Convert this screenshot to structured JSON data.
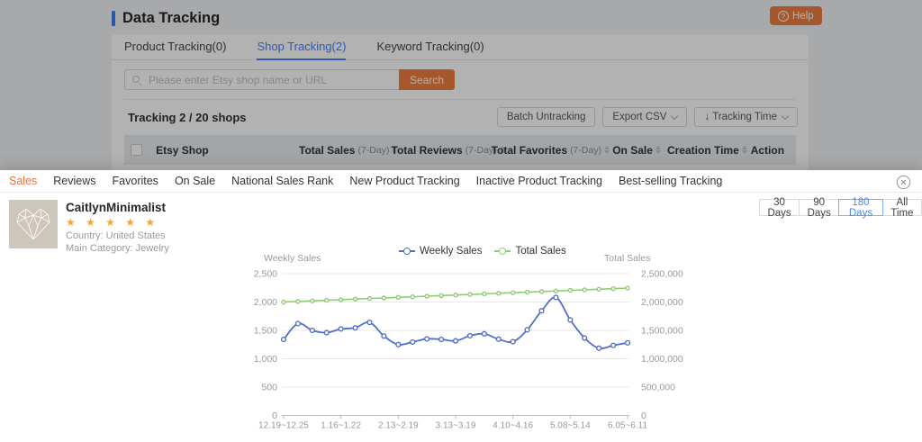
{
  "page": {
    "title": "Data Tracking",
    "help_label": "Help",
    "tabs": [
      {
        "label": "Product Tracking(0)"
      },
      {
        "label": "Shop Tracking(2)"
      },
      {
        "label": "Keyword Tracking(0)"
      }
    ],
    "search": {
      "placeholder": "Please enter Etsy shop name or URL",
      "button": "Search"
    },
    "summary": "Tracking 2 / 20 shops",
    "toolbar": {
      "batch": "Batch Untracking",
      "export": "Export CSV",
      "sort": "↓ Tracking Time"
    },
    "table": {
      "columns": [
        {
          "label": "Etsy Shop"
        },
        {
          "label": "Total Sales",
          "suffix": "(7-Day)"
        },
        {
          "label": "Total Reviews",
          "suffix": "(7-Day)"
        },
        {
          "label": "Total Favorites",
          "suffix": "(7-Day)"
        },
        {
          "label": "On Sale"
        },
        {
          "label": "Creation Time"
        },
        {
          "label": "Action"
        }
      ]
    }
  },
  "modal": {
    "tabs": [
      {
        "label": "Sales"
      },
      {
        "label": "Reviews"
      },
      {
        "label": "Favorites"
      },
      {
        "label": "On Sale"
      },
      {
        "label": "National Sales Rank"
      },
      {
        "label": "New Product Tracking"
      },
      {
        "label": "Inactive Product Tracking"
      },
      {
        "label": "Best-selling Tracking"
      }
    ],
    "shop": {
      "name": "CaitlynMinimalist",
      "stars": "★ ★ ★ ★ ★",
      "country": "Country: United States",
      "category": "Main Category: Jewelry"
    },
    "ranges": [
      {
        "label": "30 Days"
      },
      {
        "label": "90 Days"
      },
      {
        "label": "180 Days"
      },
      {
        "label": "All Time"
      }
    ]
  },
  "colors": {
    "accent_orange": "#ee7d3e",
    "accent_blue": "#477eff"
  },
  "chart_data": {
    "type": "line",
    "x_tick_labels": [
      "12.19~12.25",
      "1.16~1.22",
      "2.13~2.19",
      "3.13~3.19",
      "4.10~4.16",
      "5.08~5.14",
      "6.05~6.11"
    ],
    "x_tick_label_indices": [
      0,
      4,
      8,
      12,
      16,
      20,
      24
    ],
    "num_points": 25,
    "grid": true,
    "legend_position": "top-center",
    "left_axis": {
      "title": "Weekly Sales",
      "min": 0,
      "max": 2500,
      "ticks": [
        "2,500",
        "2,000",
        "1,500",
        "1,000",
        "500",
        "0"
      ]
    },
    "right_axis": {
      "title": "Total Sales",
      "min": 0,
      "max": 2500000,
      "ticks": [
        "2,500,000",
        "2,000,000",
        "1,500,000",
        "1,000,000",
        "500,000",
        "0"
      ]
    },
    "series": [
      {
        "name": "Weekly Sales",
        "axis": "left",
        "color": "#5470c6",
        "values": [
          1340,
          1620,
          1500,
          1460,
          1525,
          1545,
          1640,
          1400,
          1250,
          1295,
          1350,
          1340,
          1315,
          1405,
          1440,
          1345,
          1300,
          1510,
          1845,
          2080,
          1685,
          1365,
          1185,
          1235,
          1280
        ]
      },
      {
        "name": "Total Sales",
        "axis": "right",
        "color": "#91cc75",
        "values": [
          2000000,
          2010000,
          2020500,
          2030500,
          2041000,
          2051000,
          2061500,
          2071500,
          2082000,
          2092000,
          2102500,
          2112500,
          2123000,
          2133000,
          2143500,
          2153500,
          2164000,
          2174000,
          2184500,
          2194500,
          2205000,
          2215000,
          2225500,
          2235500,
          2245000
        ]
      }
    ]
  }
}
